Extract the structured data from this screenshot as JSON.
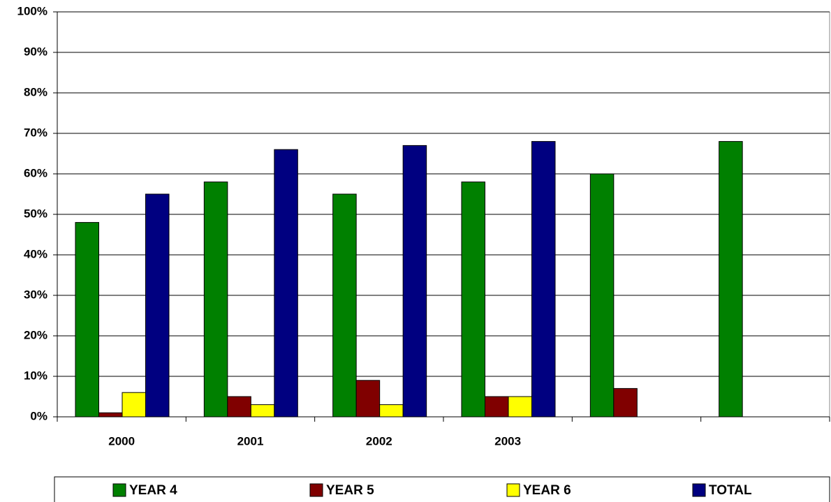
{
  "chart_data": {
    "type": "bar",
    "categories": [
      "2000",
      "2001",
      "2002",
      "2003",
      null,
      null
    ],
    "series": [
      {
        "name": "YEAR 4",
        "color": "#008000",
        "values": [
          48,
          58,
          55,
          58,
          60,
          68
        ]
      },
      {
        "name": "YEAR 5",
        "color": "#800000",
        "values": [
          1,
          5,
          9,
          5,
          7,
          null
        ]
      },
      {
        "name": "YEAR 6",
        "color": "#ffff00",
        "values": [
          6,
          3,
          3,
          5,
          null,
          null
        ]
      },
      {
        "name": "TOTAL",
        "color": "#000080",
        "values": [
          55,
          66,
          67,
          68,
          null,
          null
        ]
      }
    ],
    "ylim": [
      0,
      100
    ],
    "yticks": [
      {
        "value": 0,
        "label": "0%"
      },
      {
        "value": 10,
        "label": "10%"
      },
      {
        "value": 20,
        "label": "20%"
      },
      {
        "value": 30,
        "label": "30%"
      },
      {
        "value": 40,
        "label": "40%"
      },
      {
        "value": 50,
        "label": "50%"
      },
      {
        "value": 60,
        "label": "60%"
      },
      {
        "value": 70,
        "label": "70%"
      },
      {
        "value": 80,
        "label": "80%"
      },
      {
        "value": 90,
        "label": "90%"
      },
      {
        "value": 100,
        "label": "100%"
      }
    ],
    "grid": true
  }
}
